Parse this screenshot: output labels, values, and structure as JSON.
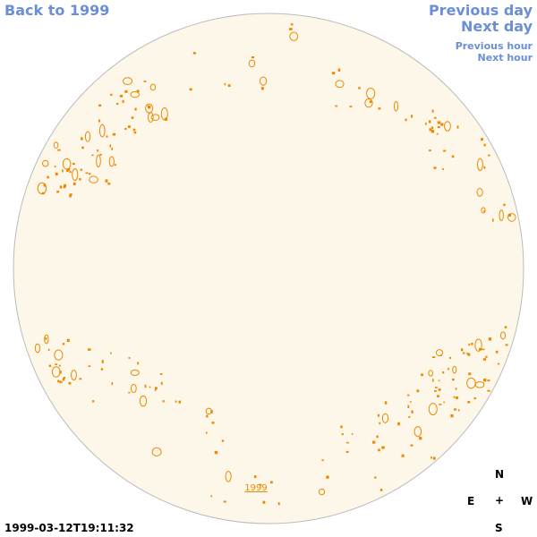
{
  "nav": {
    "back_label": "Back to 1999",
    "previous_day_label": "Previous day",
    "next_day_label": "Next day",
    "previous_hour_label": "Previous hour",
    "next_hour_label": "Next hour"
  },
  "disk": {
    "year_label": "1999",
    "fill_color": "#fdf7e9",
    "border_color": "#bbbbbb",
    "contour_color": "#ee8800"
  },
  "compass": {
    "n": "N",
    "e": "E",
    "center": "+",
    "w": "W",
    "s": "S"
  },
  "timestamp": "1999-03-12T19:11:32"
}
